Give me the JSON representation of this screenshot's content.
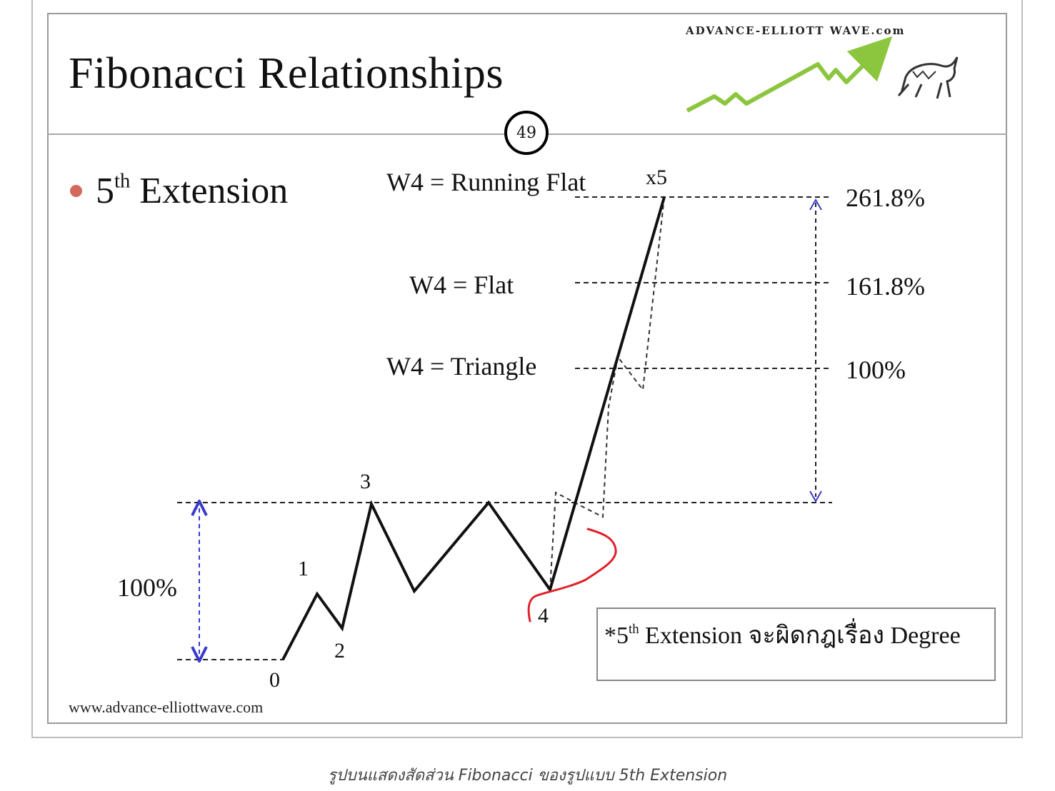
{
  "slide": {
    "title": "Fibonacci Relationships",
    "brand": "ADVANCE-ELLIOTT WAVE.com",
    "page_number": "49",
    "bullet_main": "5",
    "bullet_sup": "th",
    "bullet_rest": " Extension",
    "website": "www.advance-elliottwave.com"
  },
  "labels": {
    "w4_running_flat": "W4 = Running Flat",
    "w4_flat": "W4 = Flat",
    "w4_triangle": "W4 = Triangle",
    "pct_2618": "261.8%",
    "pct_1618": "161.8%",
    "pct_100_right": "100%",
    "pct_100_left": "100%",
    "wave_0": "0",
    "wave_1": "1",
    "wave_2": "2",
    "wave_3": "3",
    "wave_4": "4",
    "wave_x5": "x5"
  },
  "note": {
    "prefix": "*5",
    "sup": "th",
    "text": " Extension จะผิดกฎเรื่อง Degree"
  },
  "caption": "รูปบนแสดงสัดส่วน Fibonacci ของรูปแบบ 5th Extension",
  "colors": {
    "bullet": "#d46a5c",
    "arrow": "#3a3acc",
    "logo_line": "#8cc63f",
    "annotation": "#e0202a"
  }
}
